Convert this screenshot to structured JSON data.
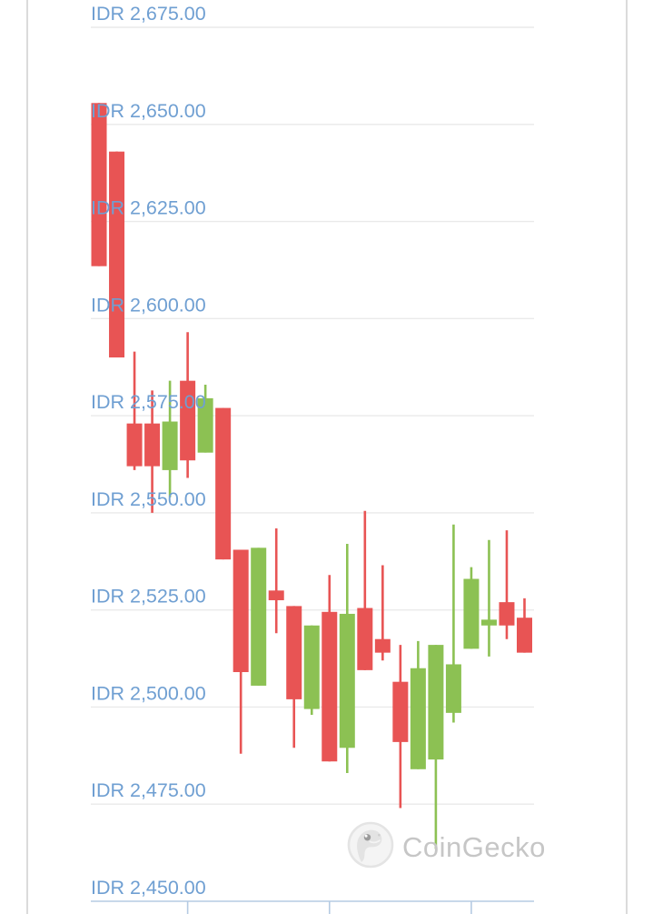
{
  "chart": {
    "watermark_text": "CoinGecko"
  },
  "colors": {
    "up_candle": "#8CC153",
    "down_candle": "#E85454",
    "price_label": "#6F9FD2",
    "gridline": "#EAEAEA",
    "axis_line": "#B5CBE3",
    "panel_border": "#DBDBDB",
    "watermark": "#C6C6C6"
  },
  "chart_data": {
    "type": "candlestick",
    "title": "",
    "currency": "IDR",
    "grid": true,
    "legend": false,
    "y_axis": {
      "ylim": [
        2450,
        2675
      ],
      "tick_values": [
        2675,
        2650,
        2625,
        2600,
        2575,
        2550,
        2525,
        2500,
        2475,
        2450
      ],
      "tick_labels": [
        "IDR 2,675.00",
        "IDR 2,650.00",
        "IDR 2,625.00",
        "IDR 2,600.00",
        "IDR 2,575.00",
        "IDR 2,550.00",
        "IDR 2,525.00",
        "IDR 2,500.00",
        "IDR 2,475.00",
        "IDR 2,450.00"
      ]
    },
    "x_axis": {
      "labels_visible": false,
      "tick_candle_indices": [
        6,
        14,
        22
      ]
    },
    "candles": [
      {
        "open": 2655.5,
        "high": 2655.5,
        "low": 2613.5,
        "close": 2613.5
      },
      {
        "open": 2643.0,
        "high": 2643.0,
        "low": 2590.0,
        "close": 2590.0
      },
      {
        "open": 2573.0,
        "high": 2591.5,
        "low": 2561.0,
        "close": 2562.0
      },
      {
        "open": 2573.0,
        "high": 2581.5,
        "low": 2550.0,
        "close": 2562.0
      },
      {
        "open": 2561.0,
        "high": 2584.0,
        "low": 2554.0,
        "close": 2573.5
      },
      {
        "open": 2584.0,
        "high": 2596.5,
        "low": 2559.0,
        "close": 2563.5
      },
      {
        "open": 2565.5,
        "high": 2583.0,
        "low": 2565.5,
        "close": 2579.5
      },
      {
        "open": 2577.0,
        "high": 2577.0,
        "low": 2538.0,
        "close": 2538.0
      },
      {
        "open": 2540.5,
        "high": 2540.5,
        "low": 2488.0,
        "close": 2509.0
      },
      {
        "open": 2505.5,
        "high": 2541.0,
        "low": 2505.5,
        "close": 2541.0
      },
      {
        "open": 2530.0,
        "high": 2546.0,
        "low": 2519.0,
        "close": 2527.5
      },
      {
        "open": 2526.0,
        "high": 2526.0,
        "low": 2489.5,
        "close": 2502.0
      },
      {
        "open": 2499.5,
        "high": 2521.0,
        "low": 2498.0,
        "close": 2521.0
      },
      {
        "open": 2524.5,
        "high": 2534.0,
        "low": 2486.0,
        "close": 2486.0
      },
      {
        "open": 2489.5,
        "high": 2542.0,
        "low": 2483.0,
        "close": 2524.0
      },
      {
        "open": 2525.5,
        "high": 2550.5,
        "low": 2509.5,
        "close": 2509.5
      },
      {
        "open": 2517.5,
        "high": 2536.5,
        "low": 2512.0,
        "close": 2514.0
      },
      {
        "open": 2506.5,
        "high": 2516.0,
        "low": 2474.0,
        "close": 2491.0
      },
      {
        "open": 2484.0,
        "high": 2517.0,
        "low": 2484.0,
        "close": 2510.0
      },
      {
        "open": 2486.5,
        "high": 2516.0,
        "low": 2463.5,
        "close": 2516.0
      },
      {
        "open": 2498.5,
        "high": 2547.0,
        "low": 2496.0,
        "close": 2511.0
      },
      {
        "open": 2515.0,
        "high": 2536.0,
        "low": 2515.0,
        "close": 2533.0
      },
      {
        "open": 2521.0,
        "high": 2543.0,
        "low": 2513.0,
        "close": 2522.5
      },
      {
        "open": 2527.0,
        "high": 2545.5,
        "low": 2517.5,
        "close": 2521.0
      },
      {
        "open": 2523.0,
        "high": 2528.0,
        "low": 2514.0,
        "close": 2514.0
      }
    ]
  }
}
